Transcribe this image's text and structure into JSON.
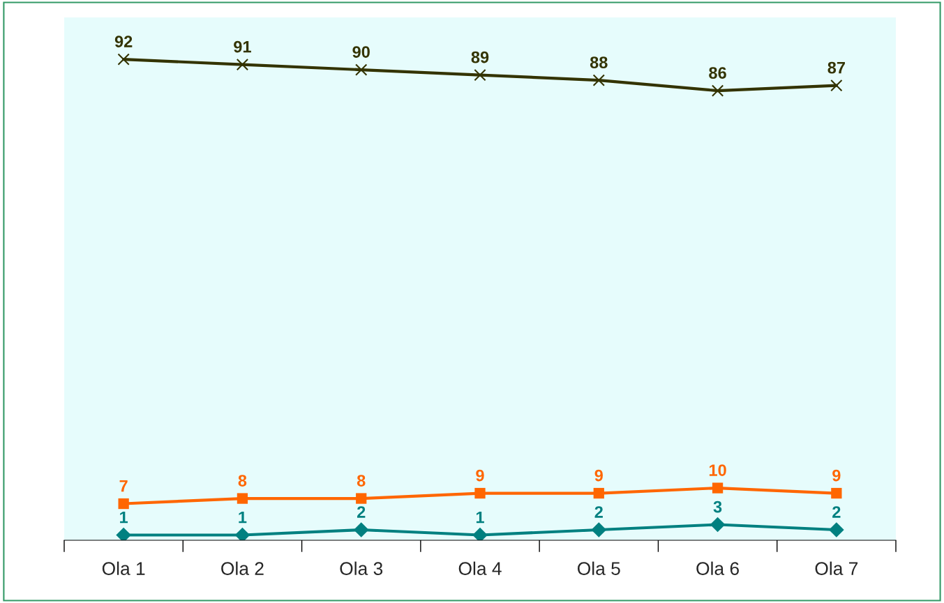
{
  "chart_data": {
    "type": "line",
    "categories": [
      "Ola 1",
      "Ola 2",
      "Ola 3",
      "Ola 4",
      "Ola 5",
      "Ola 6",
      "Ola 7"
    ],
    "series": [
      {
        "color": "#333300",
        "marker": "cross",
        "values": [
          92,
          91,
          90,
          89,
          88,
          86,
          87
        ]
      },
      {
        "color": "#ff6600",
        "marker": "square",
        "values": [
          7,
          8,
          8,
          9,
          9,
          10,
          9
        ]
      },
      {
        "color": "#008080",
        "marker": "diamond",
        "values": [
          1,
          1,
          2,
          1,
          2,
          3,
          2
        ]
      }
    ],
    "ylim": [
      0,
      100
    ],
    "data_labels": true,
    "grid": false,
    "legend": false,
    "tick_labels": "x",
    "line_style": "solid"
  }
}
